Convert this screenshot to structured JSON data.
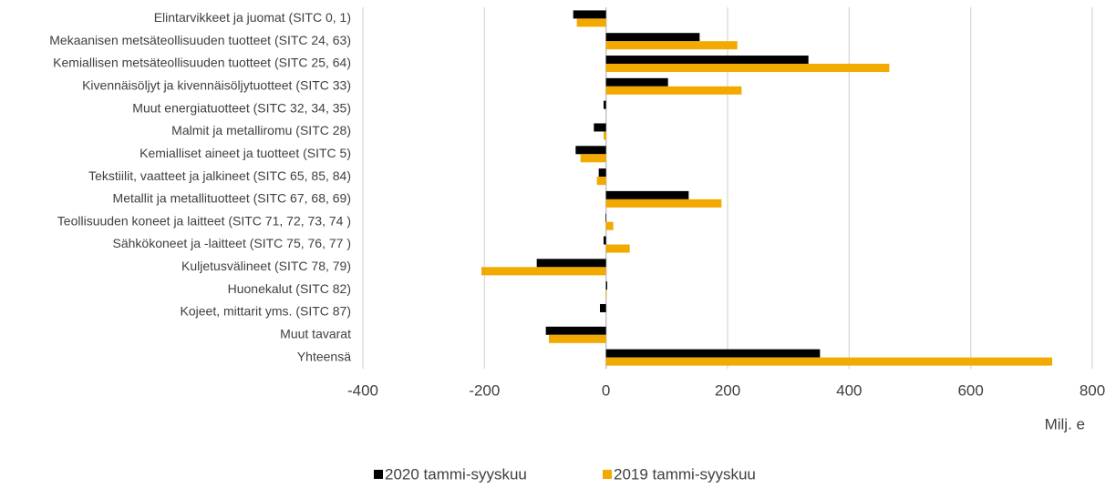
{
  "chart_data": {
    "type": "hbar",
    "categories": [
      "Elintarvikkeet ja juomat (SITC 0, 1)",
      "Mekaanisen metsäteollisuuden tuotteet (SITC 24, 63)",
      "Kemiallisen metsäteollisuuden tuotteet (SITC 25, 64)",
      "Kivennäisöljyt ja kivennäisöljytuotteet (SITC 33)",
      "Muut energiatuotteet (SITC 32, 34, 35)",
      "Malmit ja metalliromu (SITC 28)",
      "Kemialliset aineet ja tuotteet (SITC 5)",
      "Tekstiilit, vaatteet ja jalkineet (SITC 65, 85, 84)",
      "Metallit ja metallituotteet (SITC 67, 68, 69)",
      "Teollisuuden koneet ja laitteet (SITC 71, 72, 73, 74 )",
      "Sähkökoneet ja -laitteet (SITC 75, 76, 77 )",
      "Kuljetusvälineet (SITC 78, 79)",
      "Huonekalut (SITC 82)",
      "Kojeet, mittarit yms. (SITC 87)",
      "Muut tavarat",
      "Yhteensä"
    ],
    "series": [
      {
        "name": "2020 tammi-syyskuu",
        "color": "#000000",
        "values": [
          -54,
          154,
          333,
          102,
          -4,
          -20,
          -50,
          -12,
          136,
          -1,
          -4,
          -114,
          2,
          -10,
          -99,
          352
        ]
      },
      {
        "name": "2019 tammi-syyskuu",
        "color": "#f2a900",
        "values": [
          -48,
          216,
          466,
          223,
          0,
          -4,
          -42,
          -15,
          190,
          12,
          39,
          -205,
          1,
          0,
          -94,
          734
        ]
      }
    ],
    "xlabel": "Milj. e",
    "xlim": [
      -400,
      800
    ],
    "xticks": [
      -400,
      -200,
      0,
      200,
      400,
      600,
      800
    ],
    "grid": true,
    "legend": "bottom"
  }
}
